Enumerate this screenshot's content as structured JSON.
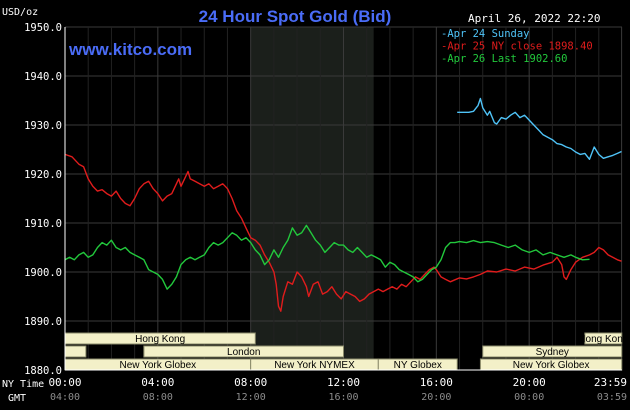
{
  "chart_data": {
    "type": "line",
    "title": "24 Hour Spot Gold (Bid)",
    "website": "www.kitco.com",
    "unit_label": "USD/oz",
    "timestamp": "April 26, 2022 22:20",
    "y_ticks": [
      "1950.0",
      "1940.0",
      "1930.0",
      "1920.0",
      "1910.0",
      "1900.0",
      "1890.0",
      "1880.0"
    ],
    "ylim": [
      1880,
      1950
    ],
    "xlim": [
      0,
      24
    ],
    "x_ticks_ny": [
      "00:00",
      "04:00",
      "08:00",
      "12:00",
      "16:00",
      "20:00",
      "23:59"
    ],
    "x_ticks_gmt": [
      "04:00",
      "08:00",
      "12:00",
      "16:00",
      "20:00",
      "00:00",
      "03:59"
    ],
    "x_tick_hours": [
      0,
      4,
      8,
      12,
      16,
      20,
      23.983
    ],
    "row_label_ny": "NY Time",
    "row_label_gmt": "GMT",
    "grid": true,
    "colors": {
      "background": "#000000",
      "grid": "#3a3a3a",
      "axis_text": "#ffffff",
      "title": "#4a6cf7",
      "shade": "#1b1f1b",
      "session_fill": "#f3f0c8",
      "session_border": "#8a8a6a",
      "session_text": "#000000"
    },
    "shaded_range": [
      8,
      13.3
    ],
    "series": [
      {
        "name": "Apr 24 Sunday",
        "color": "#4fc3f7",
        "points": [
          [
            16.9,
            1932.6
          ],
          [
            17.4,
            1932.6
          ],
          [
            17.6,
            1932.8
          ],
          [
            17.8,
            1934.0
          ],
          [
            17.9,
            1935.4
          ],
          [
            18.0,
            1933.5
          ],
          [
            18.2,
            1932.0
          ],
          [
            18.3,
            1932.8
          ],
          [
            18.5,
            1930.5
          ],
          [
            18.6,
            1930.2
          ],
          [
            18.8,
            1931.5
          ],
          [
            19.0,
            1931.2
          ],
          [
            19.2,
            1932.0
          ],
          [
            19.4,
            1932.6
          ],
          [
            19.6,
            1931.5
          ],
          [
            19.8,
            1932.0
          ],
          [
            20.0,
            1931.0
          ],
          [
            20.2,
            1930.0
          ],
          [
            20.4,
            1929.0
          ],
          [
            20.6,
            1928.0
          ],
          [
            20.8,
            1927.5
          ],
          [
            21.0,
            1927.0
          ],
          [
            21.2,
            1926.2
          ],
          [
            21.4,
            1926.0
          ],
          [
            21.6,
            1925.5
          ],
          [
            21.8,
            1925.2
          ],
          [
            22.0,
            1924.5
          ],
          [
            22.2,
            1924.0
          ],
          [
            22.4,
            1924.2
          ],
          [
            22.6,
            1923.0
          ],
          [
            22.8,
            1925.5
          ],
          [
            23.0,
            1924.0
          ],
          [
            23.2,
            1923.2
          ],
          [
            23.4,
            1923.5
          ],
          [
            23.6,
            1923.8
          ],
          [
            23.8,
            1924.2
          ],
          [
            23.98,
            1924.6
          ]
        ]
      },
      {
        "name": "Apr 25 NY close 1898.40",
        "color": "#e01c1c",
        "points": [
          [
            0.0,
            1924.0
          ],
          [
            0.3,
            1923.5
          ],
          [
            0.6,
            1922.0
          ],
          [
            0.8,
            1921.5
          ],
          [
            1.0,
            1919.0
          ],
          [
            1.2,
            1917.5
          ],
          [
            1.4,
            1916.5
          ],
          [
            1.6,
            1916.8
          ],
          [
            1.8,
            1916.0
          ],
          [
            2.0,
            1915.5
          ],
          [
            2.2,
            1916.5
          ],
          [
            2.4,
            1915.0
          ],
          [
            2.6,
            1914.0
          ],
          [
            2.8,
            1913.5
          ],
          [
            3.0,
            1915.0
          ],
          [
            3.2,
            1917.0
          ],
          [
            3.4,
            1918.0
          ],
          [
            3.6,
            1918.5
          ],
          [
            3.8,
            1917.0
          ],
          [
            4.0,
            1916.0
          ],
          [
            4.2,
            1914.5
          ],
          [
            4.4,
            1915.5
          ],
          [
            4.6,
            1916.0
          ],
          [
            4.8,
            1918.0
          ],
          [
            4.9,
            1919.0
          ],
          [
            5.0,
            1917.5
          ],
          [
            5.2,
            1919.5
          ],
          [
            5.3,
            1920.5
          ],
          [
            5.4,
            1919.0
          ],
          [
            5.6,
            1918.5
          ],
          [
            5.8,
            1918.0
          ],
          [
            6.0,
            1917.5
          ],
          [
            6.2,
            1918.0
          ],
          [
            6.4,
            1917.0
          ],
          [
            6.6,
            1917.5
          ],
          [
            6.8,
            1918.0
          ],
          [
            7.0,
            1917.0
          ],
          [
            7.2,
            1915.0
          ],
          [
            7.4,
            1912.5
          ],
          [
            7.6,
            1911.0
          ],
          [
            7.8,
            1909.0
          ],
          [
            8.0,
            1907.0
          ],
          [
            8.2,
            1906.5
          ],
          [
            8.4,
            1905.5
          ],
          [
            8.6,
            1903.5
          ],
          [
            8.8,
            1902.0
          ],
          [
            9.0,
            1900.0
          ],
          [
            9.1,
            1897.5
          ],
          [
            9.2,
            1893.0
          ],
          [
            9.3,
            1892.0
          ],
          [
            9.4,
            1895.0
          ],
          [
            9.6,
            1898.0
          ],
          [
            9.8,
            1897.5
          ],
          [
            10.0,
            1900.0
          ],
          [
            10.2,
            1899.0
          ],
          [
            10.4,
            1897.0
          ],
          [
            10.5,
            1895.0
          ],
          [
            10.7,
            1897.5
          ],
          [
            10.9,
            1898.0
          ],
          [
            11.1,
            1895.5
          ],
          [
            11.3,
            1896.0
          ],
          [
            11.5,
            1897.0
          ],
          [
            11.7,
            1895.5
          ],
          [
            11.9,
            1894.5
          ],
          [
            12.1,
            1896.0
          ],
          [
            12.3,
            1895.5
          ],
          [
            12.5,
            1895.0
          ],
          [
            12.7,
            1894.0
          ],
          [
            12.9,
            1894.5
          ],
          [
            13.1,
            1895.5
          ],
          [
            13.3,
            1896.0
          ],
          [
            13.5,
            1896.5
          ],
          [
            13.7,
            1896.0
          ],
          [
            13.9,
            1896.5
          ],
          [
            14.1,
            1897.0
          ],
          [
            14.3,
            1896.5
          ],
          [
            14.5,
            1897.5
          ],
          [
            14.7,
            1897.0
          ],
          [
            14.9,
            1898.0
          ],
          [
            15.1,
            1899.0
          ],
          [
            15.3,
            1898.5
          ],
          [
            15.5,
            1899.5
          ],
          [
            15.7,
            1900.5
          ],
          [
            15.9,
            1901.0
          ],
          [
            16.0,
            1900.5
          ],
          [
            16.2,
            1899.0
          ],
          [
            16.4,
            1898.5
          ],
          [
            16.6,
            1898.0
          ],
          [
            16.8,
            1898.4
          ],
          [
            17.0,
            1898.8
          ],
          [
            17.3,
            1898.6
          ],
          [
            17.6,
            1899.0
          ],
          [
            17.9,
            1899.5
          ],
          [
            18.2,
            1900.2
          ],
          [
            18.6,
            1900.0
          ],
          [
            19.0,
            1900.6
          ],
          [
            19.4,
            1900.2
          ],
          [
            19.8,
            1901.0
          ],
          [
            20.2,
            1900.6
          ],
          [
            20.6,
            1901.4
          ],
          [
            21.0,
            1902.0
          ],
          [
            21.2,
            1903.0
          ],
          [
            21.4,
            1901.5
          ],
          [
            21.5,
            1899.0
          ],
          [
            21.6,
            1898.5
          ],
          [
            21.8,
            1900.5
          ],
          [
            22.0,
            1902.0
          ],
          [
            22.3,
            1903.0
          ],
          [
            22.6,
            1903.5
          ],
          [
            22.8,
            1904.0
          ],
          [
            23.0,
            1905.0
          ],
          [
            23.2,
            1904.5
          ],
          [
            23.4,
            1903.5
          ],
          [
            23.6,
            1903.0
          ],
          [
            23.8,
            1902.5
          ],
          [
            23.98,
            1902.2
          ]
        ]
      },
      {
        "name": "Apr 26 Last 1902.60",
        "color": "#22c83c",
        "points": [
          [
            0.0,
            1902.5
          ],
          [
            0.2,
            1903.0
          ],
          [
            0.4,
            1902.5
          ],
          [
            0.6,
            1903.5
          ],
          [
            0.8,
            1904.0
          ],
          [
            1.0,
            1903.0
          ],
          [
            1.2,
            1903.5
          ],
          [
            1.4,
            1905.0
          ],
          [
            1.6,
            1906.0
          ],
          [
            1.8,
            1905.5
          ],
          [
            2.0,
            1906.5
          ],
          [
            2.2,
            1905.0
          ],
          [
            2.4,
            1904.5
          ],
          [
            2.6,
            1905.0
          ],
          [
            2.8,
            1904.0
          ],
          [
            3.0,
            1903.5
          ],
          [
            3.2,
            1903.0
          ],
          [
            3.4,
            1902.5
          ],
          [
            3.6,
            1900.5
          ],
          [
            3.8,
            1900.0
          ],
          [
            4.0,
            1899.5
          ],
          [
            4.2,
            1898.5
          ],
          [
            4.4,
            1896.5
          ],
          [
            4.6,
            1897.5
          ],
          [
            4.8,
            1899.0
          ],
          [
            5.0,
            1901.5
          ],
          [
            5.2,
            1902.5
          ],
          [
            5.4,
            1903.0
          ],
          [
            5.6,
            1902.5
          ],
          [
            5.8,
            1903.0
          ],
          [
            6.0,
            1903.5
          ],
          [
            6.2,
            1905.0
          ],
          [
            6.4,
            1906.0
          ],
          [
            6.6,
            1905.5
          ],
          [
            6.8,
            1906.0
          ],
          [
            7.0,
            1907.0
          ],
          [
            7.2,
            1908.0
          ],
          [
            7.4,
            1907.5
          ],
          [
            7.6,
            1906.5
          ],
          [
            7.8,
            1907.0
          ],
          [
            8.0,
            1906.0
          ],
          [
            8.2,
            1904.5
          ],
          [
            8.4,
            1903.5
          ],
          [
            8.6,
            1901.5
          ],
          [
            8.8,
            1902.5
          ],
          [
            9.0,
            1904.5
          ],
          [
            9.2,
            1903.0
          ],
          [
            9.4,
            1905.0
          ],
          [
            9.6,
            1906.5
          ],
          [
            9.8,
            1909.0
          ],
          [
            10.0,
            1907.5
          ],
          [
            10.2,
            1908.0
          ],
          [
            10.4,
            1909.5
          ],
          [
            10.6,
            1908.0
          ],
          [
            10.8,
            1906.5
          ],
          [
            11.0,
            1905.5
          ],
          [
            11.2,
            1904.0
          ],
          [
            11.4,
            1905.0
          ],
          [
            11.6,
            1906.0
          ],
          [
            11.8,
            1905.5
          ],
          [
            12.0,
            1905.5
          ],
          [
            12.2,
            1904.5
          ],
          [
            12.4,
            1904.0
          ],
          [
            12.6,
            1905.0
          ],
          [
            12.8,
            1904.0
          ],
          [
            13.0,
            1903.0
          ],
          [
            13.2,
            1903.5
          ],
          [
            13.4,
            1903.0
          ],
          [
            13.6,
            1902.5
          ],
          [
            13.8,
            1901.0
          ],
          [
            14.0,
            1902.0
          ],
          [
            14.2,
            1901.5
          ],
          [
            14.4,
            1900.5
          ],
          [
            14.6,
            1900.0
          ],
          [
            14.8,
            1899.5
          ],
          [
            15.0,
            1899.0
          ],
          [
            15.2,
            1898.0
          ],
          [
            15.4,
            1898.5
          ],
          [
            15.6,
            1899.5
          ],
          [
            15.8,
            1900.5
          ],
          [
            16.0,
            1901.0
          ],
          [
            16.2,
            1902.5
          ],
          [
            16.4,
            1905.0
          ],
          [
            16.6,
            1906.0
          ],
          [
            16.8,
            1906.0
          ],
          [
            17.0,
            1906.2
          ],
          [
            17.3,
            1906.0
          ],
          [
            17.6,
            1906.4
          ],
          [
            17.9,
            1906.0
          ],
          [
            18.2,
            1906.2
          ],
          [
            18.5,
            1906.0
          ],
          [
            18.8,
            1905.5
          ],
          [
            19.1,
            1905.0
          ],
          [
            19.4,
            1905.5
          ],
          [
            19.7,
            1904.5
          ],
          [
            20.0,
            1904.0
          ],
          [
            20.3,
            1904.5
          ],
          [
            20.6,
            1903.5
          ],
          [
            20.9,
            1904.0
          ],
          [
            21.2,
            1903.5
          ],
          [
            21.5,
            1903.0
          ],
          [
            21.8,
            1903.5
          ],
          [
            22.0,
            1903.0
          ],
          [
            22.3,
            1902.5
          ],
          [
            22.6,
            1902.6
          ]
        ]
      }
    ],
    "sessions": [
      {
        "label": "Hong Kong",
        "start": 0,
        "end": 8.2,
        "row": 0
      },
      {
        "label": "Hong Kong",
        "start": 22.4,
        "end": 23.99,
        "row": 0
      },
      {
        "label": "",
        "start": 0,
        "end": 0.9,
        "row": 1
      },
      {
        "label": "",
        "start": 3.4,
        "end": 3.9,
        "row": 1
      },
      {
        "label": "London",
        "start": 3.4,
        "end": 12.0,
        "row": 1
      },
      {
        "label": "Sydney",
        "start": 18.0,
        "end": 23.99,
        "row": 1
      },
      {
        "label": "New York Globex",
        "start": 0,
        "end": 8.0,
        "row": 2
      },
      {
        "label": "New York NYMEX",
        "start": 8.0,
        "end": 13.5,
        "row": 2
      },
      {
        "label": "NY Globex",
        "start": 13.5,
        "end": 16.9,
        "row": 2
      },
      {
        "label": "New York Globex",
        "start": 17.9,
        "end": 23.99,
        "row": 2
      }
    ]
  }
}
